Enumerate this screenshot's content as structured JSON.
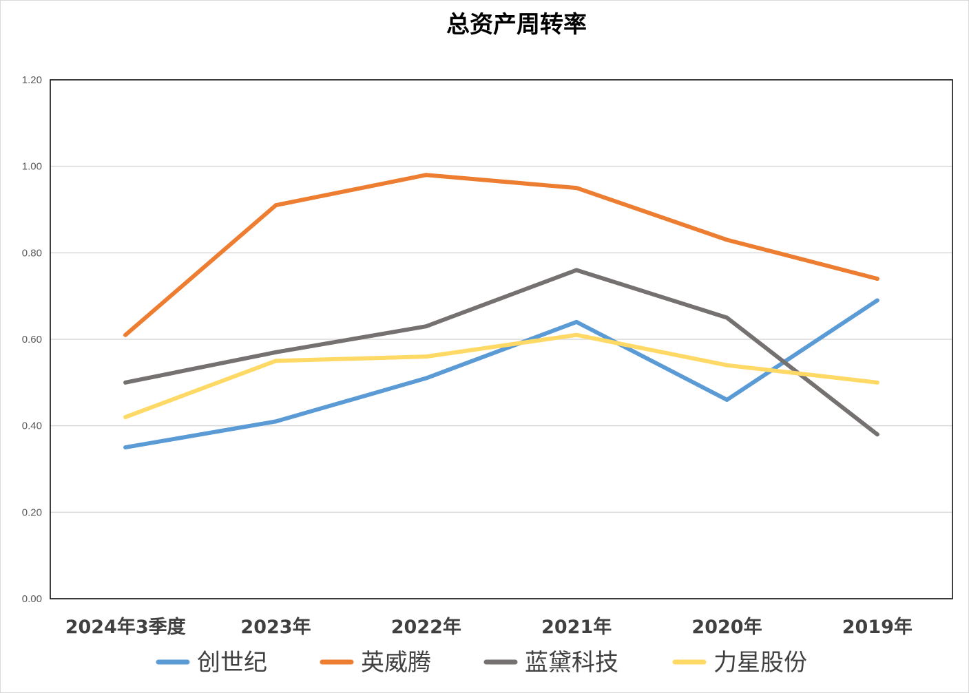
{
  "chart_data": {
    "type": "line",
    "title": "总资产周转率",
    "xlabel": "",
    "ylabel": "",
    "categories": [
      "2024年3季度",
      "2023年",
      "2022年",
      "2021年",
      "2020年",
      "2019年"
    ],
    "ylim": [
      0,
      1.2
    ],
    "yticks": [
      "0.00",
      "0.20",
      "0.40",
      "0.60",
      "0.80",
      "1.00",
      "1.20"
    ],
    "grid": true,
    "legend_position": "bottom",
    "series": [
      {
        "name": "创世纪",
        "color": "#5b9bd5",
        "values": [
          0.35,
          0.41,
          0.51,
          0.64,
          0.46,
          0.69
        ]
      },
      {
        "name": "英威腾",
        "color": "#ed7d31",
        "values": [
          0.61,
          0.91,
          0.98,
          0.95,
          0.83,
          0.74
        ]
      },
      {
        "name": "蓝黛科技",
        "color": "#767171",
        "values": [
          0.5,
          0.57,
          0.63,
          0.76,
          0.65,
          0.38
        ]
      },
      {
        "name": "力星股份",
        "color": "#ffd966",
        "values": [
          0.42,
          0.55,
          0.56,
          0.61,
          0.54,
          0.5
        ]
      }
    ]
  }
}
